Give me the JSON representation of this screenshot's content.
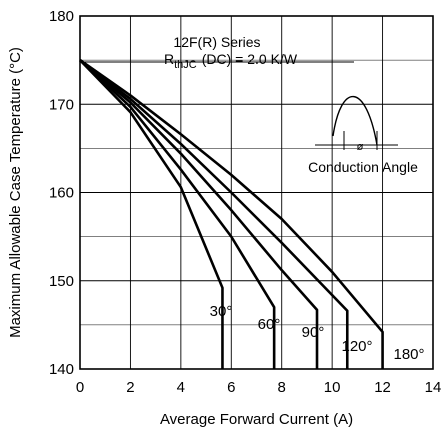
{
  "chart_data": {
    "type": "line",
    "title": "",
    "xlabel": "Average Forward Current (A)",
    "ylabel": "Maximum Allowable Case Temperature (°C)",
    "xlim": [
      0,
      14
    ],
    "ylim": [
      140,
      180
    ],
    "x_ticks": [
      0,
      2,
      4,
      6,
      8,
      10,
      12,
      14
    ],
    "y_ticks": [
      140,
      150,
      160,
      170,
      180
    ],
    "x_tick_labels": [
      "0",
      "2",
      "4",
      "6",
      "8",
      "10",
      "12",
      "14"
    ],
    "y_tick_labels": [
      "140",
      "150",
      "160",
      "170",
      "180"
    ],
    "grid": true,
    "annotations": {
      "series_title": "12F(R) Series",
      "rth_prefix": "R",
      "rth_subscript": "thJC",
      "rth_suffix": "(DC) = 2.0 K/W",
      "waveform_label": "Conduction Angle",
      "phi_symbol": "ø"
    },
    "series": [
      {
        "name": "30°",
        "x": [
          0,
          2,
          4,
          5.65,
          5.65
        ],
        "y": [
          175,
          169.1,
          160.6,
          149.2,
          140
        ]
      },
      {
        "name": "60°",
        "x": [
          0,
          2,
          4,
          6,
          7.7,
          7.7
        ],
        "y": [
          175,
          169.7,
          162.6,
          155.0,
          147.0,
          140
        ]
      },
      {
        "name": "90°",
        "x": [
          0,
          2,
          4,
          6,
          8,
          9.4,
          9.4
        ],
        "y": [
          175,
          170.2,
          164.4,
          158.0,
          151.2,
          146.7,
          140
        ]
      },
      {
        "name": "120°",
        "x": [
          0,
          2,
          4,
          6,
          8,
          10.6,
          10.6
        ],
        "y": [
          175,
          170.6,
          165.5,
          160.0,
          154.3,
          146.6,
          140
        ]
      },
      {
        "name": "180°",
        "x": [
          0,
          2,
          4,
          6,
          8,
          10,
          12,
          12
        ],
        "y": [
          175,
          171.0,
          166.6,
          162.0,
          157.0,
          151.0,
          144.2,
          140
        ]
      }
    ]
  }
}
